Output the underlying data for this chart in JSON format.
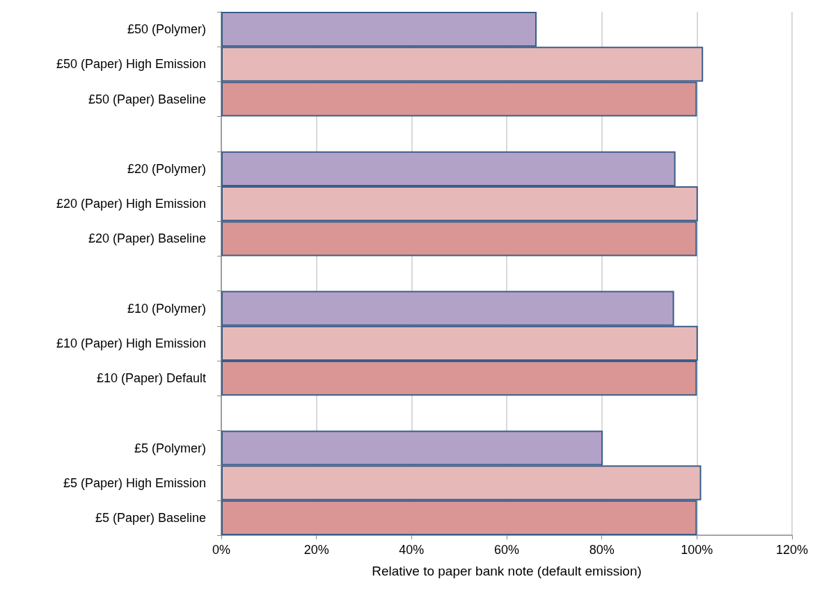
{
  "chart_data": {
    "type": "bar",
    "orientation": "horizontal",
    "xlabel": "Relative to paper bank note (default emission)",
    "categories": [
      "£50 (Polymer)",
      "£50 (Paper) High Emission",
      "£50 (Paper) Baseline",
      null,
      "£20 (Polymer)",
      "£20 (Paper) High Emission",
      "£20 (Paper) Baseline",
      null,
      "£10 (Polymer)",
      "£10 (Paper) High Emission",
      "£10 (Paper) Default",
      null,
      "£5 (Polymer)",
      "£5 (Paper) High Emission",
      "£5 (Paper) Baseline"
    ],
    "values": [
      66.3,
      101.3,
      100,
      null,
      95.5,
      100.2,
      100,
      null,
      95.2,
      100.2,
      100,
      null,
      80.2,
      100.9,
      100
    ],
    "colors": [
      "#b3a2c7",
      "#e6b9b8",
      "#d99694",
      null,
      "#b3a2c7",
      "#e6b9b8",
      "#d99694",
      null,
      "#b3a2c7",
      "#e6b9b8",
      "#d99694",
      null,
      "#b3a2c7",
      "#e6b9b8",
      "#d99694"
    ],
    "xlim": [
      0,
      120
    ],
    "xticks": [
      {
        "value": 0,
        "label": "0%"
      },
      {
        "value": 20,
        "label": "20%"
      },
      {
        "value": 40,
        "label": "40%"
      },
      {
        "value": 60,
        "label": "60%"
      },
      {
        "value": 80,
        "label": "80%"
      },
      {
        "value": 100,
        "label": "100%"
      },
      {
        "value": 120,
        "label": "120%"
      }
    ],
    "grid": "x"
  }
}
